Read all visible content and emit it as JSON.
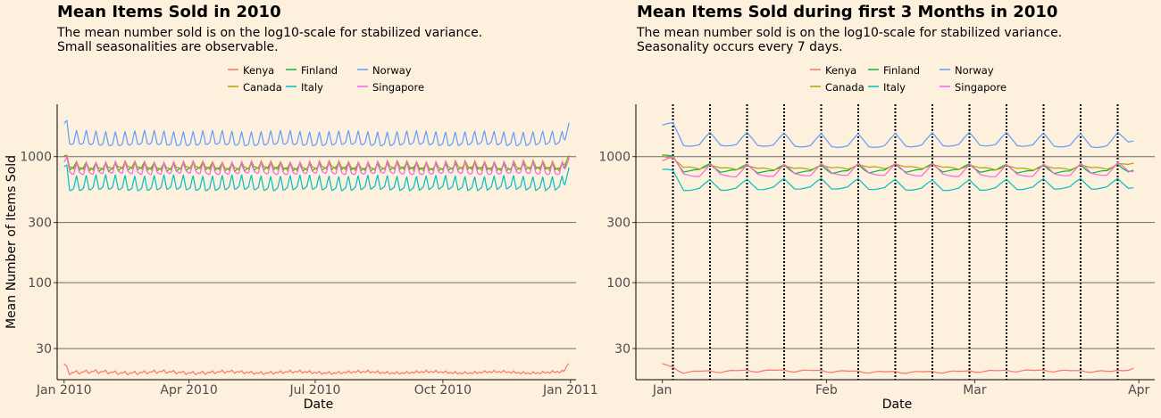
{
  "colors": {
    "background": "#fdf0dd",
    "gridline": "#6b6b6b",
    "axis": "#000000",
    "Kenya": "#f8766d",
    "Canada": "#b79f00",
    "Finland": "#00ba38",
    "Italy": "#00bfc4",
    "Norway": "#619cff",
    "Singapore": "#f564e3"
  },
  "charts": [
    {
      "title": "Mean Items Sold in 2010",
      "subtitle_lines": [
        "The mean number sold is on the log10-scale for stabilized variance.",
        "Small seasonalities are observable."
      ],
      "legend_rows": [
        [
          "Kenya",
          "Finland",
          "Norway"
        ],
        [
          "Canada",
          "Italy",
          "Singapore"
        ]
      ],
      "ylabel": "Mean Number of Items Sold",
      "xlabel": "Date",
      "y_ticks": [
        "1000",
        "300",
        "100",
        "30"
      ],
      "x_ticks": [
        "Jan 2010",
        "Apr 2010",
        "Jul 2010",
        "Oct 2010",
        "Jan 2011"
      ]
    },
    {
      "title": "Mean Items Sold during first 3 Months in 2010",
      "subtitle_lines": [
        "The mean number sold is on the log10-scale for stabilized variance.",
        "Seasonality occurs every 7 days."
      ],
      "legend_rows": [
        [
          "Kenya",
          "Finland",
          "Norway"
        ],
        [
          "Canada",
          "Italy",
          "Singapore"
        ]
      ],
      "ylabel": "",
      "xlabel": "Date",
      "y_ticks": [
        "1000",
        "300",
        "100",
        "30"
      ],
      "x_ticks": [
        "Jan",
        "Feb",
        "Mar",
        "Apr"
      ]
    }
  ],
  "chart_data": [
    {
      "type": "line",
      "title": "Mean Items Sold in 2010",
      "xlabel": "Date",
      "ylabel": "Mean Number of Items Sold",
      "yscale": "log10",
      "ylim": [
        17,
        2600
      ],
      "xlim": [
        "2009-12-27",
        "2011-01-05"
      ],
      "x_start": "2010-01-01",
      "x_end": "2010-12-31",
      "y_tick_values": [
        1000,
        300,
        100,
        30
      ],
      "x_tick_values": [
        "2010-01-01",
        "2010-04-01",
        "2010-07-01",
        "2010-10-01",
        "2011-01-01"
      ],
      "grid": "horizontal major",
      "legend_position": "top",
      "weekly_seasonality": true,
      "series": [
        {
          "name": "Norway",
          "typical_low": 1270,
          "weekly_peak": 1560,
          "start_spike": 1900,
          "end_spike": 1900
        },
        {
          "name": "Finland",
          "typical_low": 790,
          "weekly_peak": 910,
          "start_spike": 1000,
          "end_spike": 1050
        },
        {
          "name": "Canada",
          "typical_low": 800,
          "weekly_peak": 930,
          "start_spike": 1030,
          "end_spike": 1080
        },
        {
          "name": "Singapore",
          "typical_low": 750,
          "weekly_peak": 880,
          "start_spike": 950,
          "end_spike": 1020
        },
        {
          "name": "Italy",
          "typical_low": 560,
          "weekly_peak": 700,
          "start_spike": 860,
          "end_spike": 820
        },
        {
          "name": "Kenya",
          "typical_low": 19,
          "weekly_peak": 20.5,
          "start_spike": 23,
          "end_spike": 23
        }
      ]
    },
    {
      "type": "line",
      "title": "Mean Items Sold during first 3 Months in 2010",
      "xlabel": "Date",
      "ylabel": "",
      "yscale": "log10",
      "ylim": [
        17,
        2600
      ],
      "xlim": [
        "2009-12-27",
        "2010-04-04"
      ],
      "x_start": "2010-01-01",
      "x_end": "2010-03-31",
      "y_tick_values": [
        1000,
        300,
        100,
        30
      ],
      "x_tick_values": [
        "2010-01-01",
        "2010-02-01",
        "2010-03-01",
        "2010-04-01"
      ],
      "vertical_dotted_lines": [
        "2010-01-03",
        "2010-01-10",
        "2010-01-17",
        "2010-01-24",
        "2010-01-31",
        "2010-02-07",
        "2010-02-14",
        "2010-02-21",
        "2010-02-28",
        "2010-03-07",
        "2010-03-14",
        "2010-03-21",
        "2010-03-28"
      ],
      "grid": "horizontal major",
      "legend_position": "top",
      "weekly_seasonality": true,
      "series": [
        {
          "name": "Norway",
          "typical_low": 1230,
          "weekly_peak": 1500,
          "start_spike": 1850,
          "end_spike": 1400
        },
        {
          "name": "Finland",
          "typical_low": 760,
          "weekly_peak": 880,
          "start_spike": 1020,
          "end_spike": 780
        },
        {
          "name": "Canada",
          "typical_low": 800,
          "weekly_peak": 880,
          "start_spike": 1030,
          "end_spike": 860
        },
        {
          "name": "Singapore",
          "typical_low": 720,
          "weekly_peak": 860,
          "start_spike": 980,
          "end_spike": 760
        },
        {
          "name": "Italy",
          "typical_low": 560,
          "weekly_peak": 650,
          "start_spike": 820,
          "end_spike": 580
        },
        {
          "name": "Kenya",
          "typical_low": 19.5,
          "weekly_peak": 20.5,
          "start_spike": 23,
          "end_spike": 21
        }
      ]
    }
  ]
}
